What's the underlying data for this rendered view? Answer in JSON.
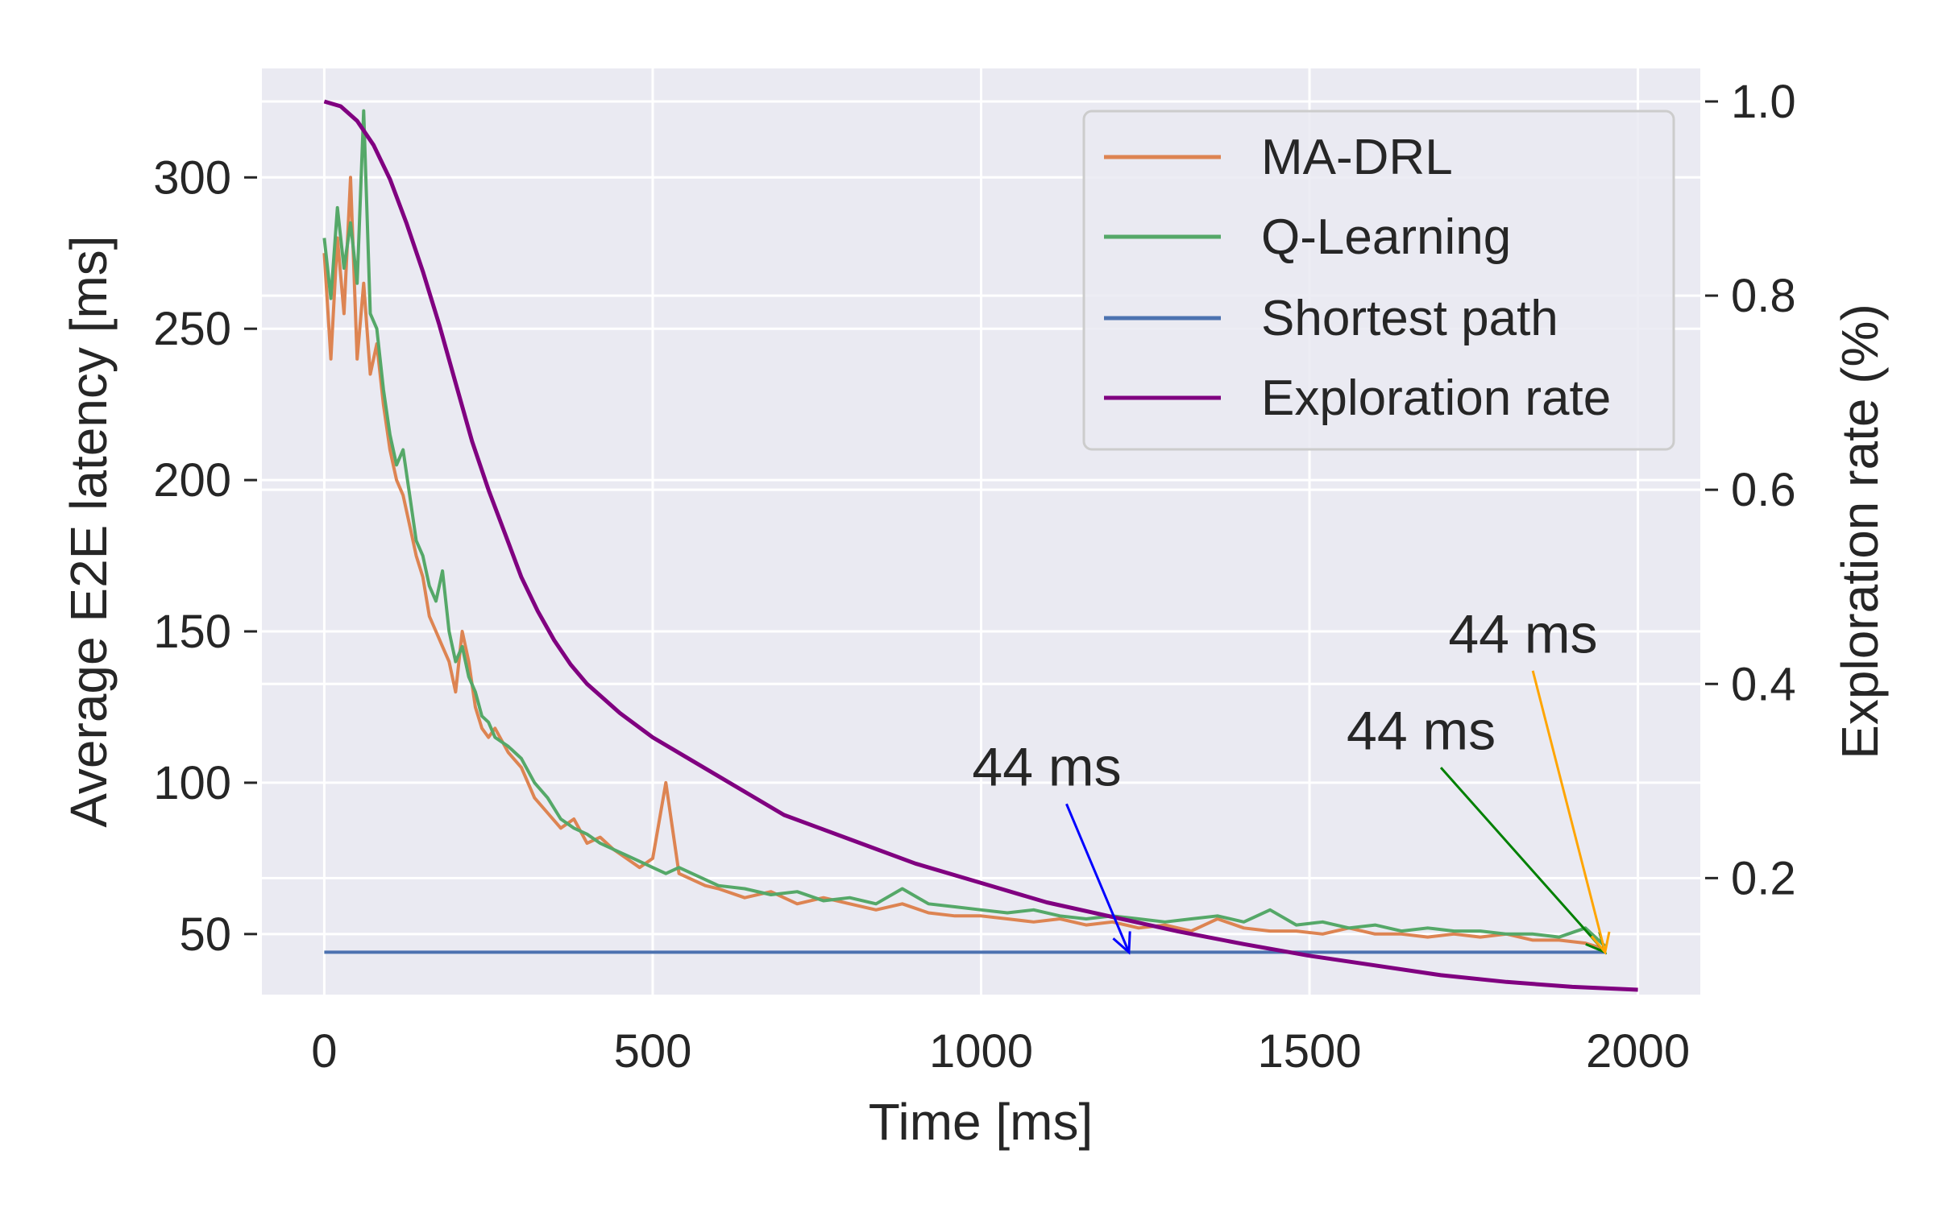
{
  "chart_data": {
    "type": "line",
    "xlabel": "Time [ms]",
    "ylabel": "Average E2E latency [ms]",
    "y2label": "Exploration rate (%)",
    "xlim": [
      -95,
      2095
    ],
    "ylim": [
      30,
      336
    ],
    "y2lim": [
      0.08,
      1.034
    ],
    "xticks": [
      0,
      500,
      1000,
      1500,
      2000
    ],
    "xtick_labels": [
      "0",
      "500",
      "1000",
      "1500",
      "2000"
    ],
    "yticks": [
      50,
      100,
      150,
      200,
      250,
      300
    ],
    "ytick_labels": [
      "50",
      "100",
      "150",
      "200",
      "250",
      "300"
    ],
    "y2ticks": [
      0.2,
      0.4,
      0.6,
      0.8,
      1.0
    ],
    "y2tick_labels": [
      "0.2",
      "0.4",
      "0.6",
      "0.8",
      "1.0"
    ],
    "grid": true,
    "legend_position": "top-right",
    "background": "#eaeaf2",
    "series": [
      {
        "name": "MA-DRL",
        "axis": "left",
        "color": "#dd8452",
        "x": [
          0,
          10,
          20,
          30,
          40,
          50,
          60,
          70,
          80,
          90,
          100,
          110,
          120,
          130,
          140,
          150,
          160,
          170,
          180,
          190,
          200,
          210,
          220,
          230,
          240,
          250,
          260,
          280,
          300,
          320,
          340,
          360,
          380,
          400,
          420,
          440,
          460,
          480,
          500,
          520,
          540,
          560,
          580,
          600,
          640,
          680,
          720,
          760,
          800,
          840,
          880,
          920,
          960,
          1000,
          1040,
          1080,
          1120,
          1160,
          1200,
          1240,
          1280,
          1320,
          1360,
          1400,
          1440,
          1480,
          1520,
          1560,
          1600,
          1640,
          1680,
          1720,
          1760,
          1800,
          1840,
          1880,
          1920,
          1950
        ],
        "values": [
          275,
          240,
          280,
          255,
          300,
          240,
          265,
          235,
          245,
          225,
          210,
          200,
          195,
          185,
          175,
          168,
          155,
          150,
          145,
          140,
          130,
          150,
          140,
          125,
          118,
          115,
          118,
          110,
          105,
          95,
          90,
          85,
          88,
          80,
          82,
          78,
          75,
          72,
          75,
          100,
          70,
          68,
          66,
          65,
          62,
          64,
          60,
          62,
          60,
          58,
          60,
          57,
          56,
          56,
          55,
          54,
          55,
          53,
          54,
          52,
          53,
          51,
          55,
          52,
          51,
          51,
          50,
          52,
          50,
          50,
          49,
          50,
          49,
          50,
          48,
          48,
          47,
          45
        ]
      },
      {
        "name": "Q-Learning",
        "axis": "left",
        "color": "#55a868",
        "x": [
          0,
          10,
          20,
          30,
          40,
          50,
          60,
          70,
          80,
          90,
          100,
          110,
          120,
          130,
          140,
          150,
          160,
          170,
          180,
          190,
          200,
          210,
          220,
          230,
          240,
          250,
          260,
          280,
          300,
          320,
          340,
          360,
          380,
          400,
          420,
          440,
          460,
          480,
          500,
          520,
          540,
          560,
          580,
          600,
          640,
          680,
          720,
          760,
          800,
          840,
          880,
          920,
          960,
          1000,
          1040,
          1080,
          1120,
          1160,
          1200,
          1240,
          1280,
          1320,
          1360,
          1400,
          1440,
          1480,
          1520,
          1560,
          1600,
          1640,
          1680,
          1720,
          1760,
          1800,
          1840,
          1880,
          1920,
          1950
        ],
        "values": [
          280,
          260,
          290,
          270,
          285,
          265,
          322,
          255,
          250,
          230,
          215,
          205,
          210,
          195,
          180,
          175,
          165,
          160,
          170,
          150,
          140,
          145,
          135,
          130,
          122,
          120,
          115,
          112,
          108,
          100,
          95,
          88,
          85,
          83,
          80,
          78,
          76,
          74,
          72,
          70,
          72,
          70,
          68,
          66,
          65,
          63,
          64,
          61,
          62,
          60,
          65,
          60,
          59,
          58,
          57,
          58,
          56,
          55,
          56,
          55,
          54,
          55,
          56,
          54,
          58,
          53,
          54,
          52,
          53,
          51,
          52,
          51,
          51,
          50,
          50,
          49,
          52,
          46
        ]
      },
      {
        "name": "Shortest path",
        "axis": "left",
        "color": "#4c72b0",
        "x": [
          0,
          1950
        ],
        "values": [
          44,
          44
        ]
      },
      {
        "name": "Exploration rate",
        "axis": "right",
        "color": "#800080",
        "x": [
          0,
          25,
          50,
          75,
          100,
          125,
          150,
          175,
          200,
          225,
          250,
          275,
          300,
          325,
          350,
          375,
          400,
          450,
          500,
          550,
          600,
          650,
          700,
          800,
          900,
          1000,
          1100,
          1200,
          1300,
          1400,
          1500,
          1600,
          1700,
          1800,
          1900,
          2000
        ],
        "values": [
          1.0,
          0.995,
          0.98,
          0.955,
          0.92,
          0.875,
          0.825,
          0.77,
          0.71,
          0.65,
          0.6,
          0.555,
          0.51,
          0.475,
          0.445,
          0.42,
          0.4,
          0.37,
          0.345,
          0.325,
          0.305,
          0.285,
          0.265,
          0.24,
          0.215,
          0.195,
          0.175,
          0.16,
          0.145,
          0.132,
          0.12,
          0.11,
          0.1,
          0.093,
          0.088,
          0.085
        ]
      }
    ],
    "annotations": [
      {
        "text": "44 ms",
        "color": "#0000ff",
        "text_x": 1100,
        "text_y": 99,
        "arrow_from": [
          1130,
          93
        ],
        "arrow_to": [
          1225,
          44
        ]
      },
      {
        "text": "44 ms",
        "color": "#008000",
        "text_x": 1670,
        "text_y": 111,
        "arrow_from": [
          1700,
          105
        ],
        "arrow_to": [
          1950,
          44
        ]
      },
      {
        "text": "44 ms",
        "color": "#ffa500",
        "text_x": 1825,
        "text_y": 143,
        "arrow_from": [
          1840,
          137
        ],
        "arrow_to": [
          1950,
          44
        ]
      }
    ]
  }
}
